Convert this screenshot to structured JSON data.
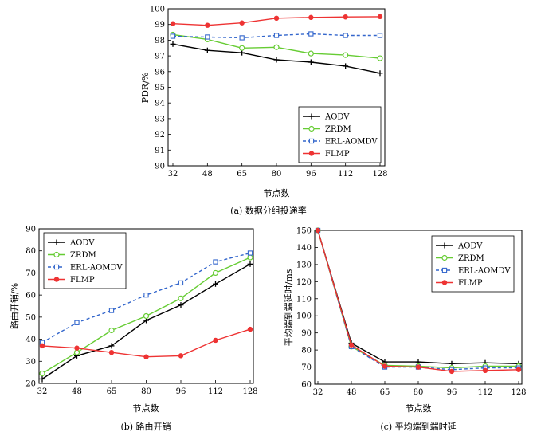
{
  "chart_data": [
    {
      "id": "a",
      "type": "line",
      "caption": "(a) 数据分组投递率",
      "xlabel": "节点数",
      "ylabel": "PDR/%",
      "categories": [
        "32",
        "48",
        "65",
        "80",
        "96",
        "112",
        "128"
      ],
      "ylim": [
        90,
        100
      ],
      "yticks": [
        90,
        91,
        92,
        93,
        94,
        95,
        96,
        97,
        98,
        99,
        100
      ],
      "legend_position": "bottom-right",
      "series": [
        {
          "name": "AODV",
          "color": "#000000",
          "marker": "plus",
          "dashed": false,
          "values": [
            97.75,
            97.35,
            97.2,
            96.75,
            96.6,
            96.35,
            95.9
          ]
        },
        {
          "name": "ZRDM",
          "color": "#66cc33",
          "marker": "circle",
          "dashed": false,
          "values": [
            98.35,
            98.05,
            97.5,
            97.55,
            97.15,
            97.05,
            96.85
          ]
        },
        {
          "name": "ERL-AOMDV",
          "color": "#3366cc",
          "marker": "square",
          "dashed": true,
          "values": [
            98.25,
            98.2,
            98.15,
            98.3,
            98.4,
            98.3,
            98.3
          ]
        },
        {
          "name": "FLMP",
          "color": "#ee3333",
          "marker": "star",
          "dashed": false,
          "values": [
            99.05,
            98.95,
            99.1,
            99.4,
            99.45,
            99.48,
            99.5
          ]
        }
      ]
    },
    {
      "id": "b",
      "type": "line",
      "caption": "(b) 路由开销",
      "xlabel": "节点数",
      "ylabel": "路由开销/%",
      "categories": [
        "32",
        "48",
        "65",
        "80",
        "96",
        "112",
        "128"
      ],
      "ylim": [
        20,
        90
      ],
      "yticks": [
        20,
        30,
        40,
        50,
        60,
        70,
        80,
        90
      ],
      "legend_position": "top-left",
      "series": [
        {
          "name": "AODV",
          "color": "#000000",
          "marker": "plus",
          "dashed": false,
          "values": [
            22,
            32.5,
            37,
            48.5,
            55.5,
            65,
            74
          ]
        },
        {
          "name": "ZRDM",
          "color": "#66cc33",
          "marker": "circle",
          "dashed": false,
          "values": [
            24.5,
            34,
            44,
            50.5,
            58.5,
            70,
            77
          ]
        },
        {
          "name": "ERL-AOMDV",
          "color": "#3366cc",
          "marker": "square",
          "dashed": true,
          "values": [
            38.5,
            47.5,
            53,
            60,
            65.5,
            75,
            79
          ]
        },
        {
          "name": "FLMP",
          "color": "#ee3333",
          "marker": "star",
          "dashed": false,
          "values": [
            37,
            36,
            34,
            32,
            32.5,
            39.5,
            44.5
          ]
        }
      ]
    },
    {
      "id": "c",
      "type": "line",
      "caption": "(c) 平均端到端时延",
      "xlabel": "节点数",
      "ylabel": "平均端到端延时/ms",
      "categories": [
        "32",
        "48",
        "65",
        "80",
        "96",
        "112",
        "128"
      ],
      "ylim": [
        60,
        150
      ],
      "yticks": [
        60,
        70,
        80,
        90,
        100,
        110,
        120,
        130,
        140,
        150
      ],
      "legend_position": "top-right",
      "series": [
        {
          "name": "AODV",
          "color": "#000000",
          "marker": "plus",
          "dashed": false,
          "values": [
            150,
            84,
            73,
            73,
            72,
            72.5,
            72
          ]
        },
        {
          "name": "ZRDM",
          "color": "#66cc33",
          "marker": "circle",
          "dashed": false,
          "values": [
            150,
            82,
            71,
            70.5,
            69.5,
            70.5,
            70.5
          ]
        },
        {
          "name": "ERL-AOMDV",
          "color": "#3366cc",
          "marker": "square",
          "dashed": true,
          "values": [
            150,
            82,
            70,
            70,
            68.5,
            69.5,
            69.5
          ]
        },
        {
          "name": "FLMP",
          "color": "#ee3333",
          "marker": "star",
          "dashed": false,
          "values": [
            150,
            83,
            70.5,
            70,
            67.5,
            68,
            68.5
          ]
        }
      ]
    }
  ]
}
